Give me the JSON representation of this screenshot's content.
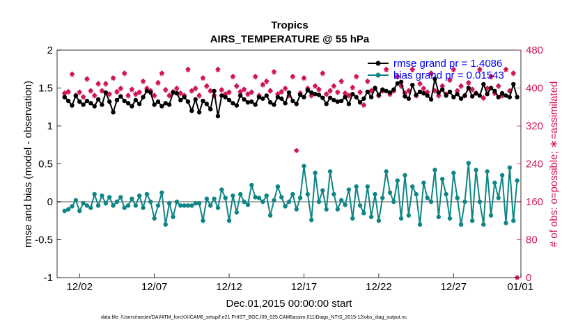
{
  "chart_data": {
    "type": "line",
    "title": "Tropics",
    "subtitle": "AIRS_TEMPERATURE @ 55 hPa",
    "xlabel": "Dec.01,2015 00:00:00 start",
    "ylabel": "rmse and bias (model - observation)",
    "ylabel_right": "# of obs: o=possible; ∗=assimilated",
    "x_range": [
      0.5,
      31.5
    ],
    "ylim": [
      -1,
      2
    ],
    "ylim_right": [
      0,
      480
    ],
    "x_ticks": [
      {
        "x": 2,
        "label": "12/02"
      },
      {
        "x": 7,
        "label": "12/07"
      },
      {
        "x": 12,
        "label": "12/12"
      },
      {
        "x": 17,
        "label": "12/17"
      },
      {
        "x": 22,
        "label": "12/22"
      },
      {
        "x": 27,
        "label": "12/27"
      },
      {
        "x": 32,
        "label": "01/01"
      }
    ],
    "y_ticks": [
      "-1",
      "-0.5",
      "0",
      "0.5",
      "1",
      "1.5",
      "2"
    ],
    "y_ticks_right": [
      "0",
      "80",
      "160",
      "240",
      "320",
      "400",
      "480"
    ],
    "legend": [
      {
        "label": "rmse grand pr = 1.4086",
        "color": "#000000"
      },
      {
        "label": "bias grand pr = 0.01543",
        "color": "#0f8585"
      }
    ],
    "footnote": "data file: /Users/raeder/DAI/ATM_forcXX/CAM6_setup/f.e21.FHIST_BGC.f09_025.CAM6assim.011/Diags_NTrS_2015-12/obs_diag_output.nc",
    "colors": {
      "rmse": "#000000",
      "bias": "#0f8585",
      "obs": "#d1145a",
      "zero": "#aaaaaa"
    },
    "series": [
      {
        "name": "rmse",
        "x": [
          1.0,
          1.25,
          1.5,
          1.75,
          2.0,
          2.25,
          2.5,
          2.75,
          3.0,
          3.25,
          3.5,
          3.75,
          4.0,
          4.25,
          4.5,
          4.75,
          5.0,
          5.25,
          5.5,
          5.75,
          6.0,
          6.25,
          6.5,
          6.75,
          7.0,
          7.25,
          7.5,
          7.75,
          8.0,
          8.25,
          8.5,
          8.75,
          9.0,
          9.25,
          9.5,
          9.75,
          10.0,
          10.25,
          10.5,
          10.75,
          11.0,
          11.25,
          11.5,
          11.75,
          12.0,
          12.25,
          12.5,
          12.75,
          13.0,
          13.25,
          13.5,
          13.75,
          14.0,
          14.25,
          14.5,
          14.75,
          15.0,
          15.25,
          15.5,
          15.75,
          16.0,
          16.25,
          16.5,
          16.75,
          17.0,
          17.25,
          17.5,
          17.75,
          18.0,
          18.25,
          18.5,
          18.75,
          19.0,
          19.25,
          19.5,
          19.75,
          20.0,
          20.25,
          20.5,
          20.75,
          21.0,
          21.25,
          21.5,
          21.75,
          22.0,
          22.25,
          22.5,
          22.75,
          23.0,
          23.25,
          23.5,
          23.75,
          24.0,
          24.25,
          24.5,
          24.75,
          25.0,
          25.25,
          25.5,
          25.75,
          26.0,
          26.25,
          26.5,
          26.75,
          27.0,
          27.25,
          27.5,
          27.75,
          28.0,
          28.25,
          28.5,
          28.75,
          29.0,
          29.25,
          29.5,
          29.75,
          30.0,
          30.25,
          30.5,
          30.75,
          31.0,
          31.25
        ],
        "values": [
          1.38,
          1.33,
          1.27,
          1.4,
          1.32,
          1.28,
          1.33,
          1.3,
          1.26,
          1.35,
          1.28,
          1.44,
          1.32,
          1.18,
          1.34,
          1.39,
          1.33,
          1.3,
          1.26,
          1.34,
          1.29,
          1.38,
          1.46,
          1.44,
          1.28,
          1.32,
          1.26,
          1.3,
          1.28,
          1.44,
          1.43,
          1.34,
          1.38,
          1.32,
          1.2,
          1.35,
          1.18,
          1.33,
          1.29,
          1.22,
          1.46,
          1.13,
          1.4,
          1.38,
          1.34,
          1.3,
          1.27,
          1.4,
          1.35,
          1.31,
          1.32,
          1.28,
          1.38,
          1.36,
          1.4,
          1.31,
          1.28,
          1.38,
          1.36,
          1.3,
          1.44,
          1.33,
          1.29,
          1.41,
          1.38,
          1.47,
          1.44,
          1.42,
          1.41,
          1.37,
          1.29,
          1.37,
          1.34,
          1.32,
          1.33,
          1.38,
          1.29,
          1.42,
          1.38,
          1.31,
          1.36,
          1.45,
          1.38,
          1.5,
          1.41,
          1.48,
          1.46,
          1.44,
          1.48,
          1.56,
          1.58,
          1.39,
          1.36,
          1.54,
          1.41,
          1.45,
          1.43,
          1.4,
          1.35,
          1.62,
          1.44,
          1.48,
          1.4,
          1.45,
          1.38,
          1.42,
          1.36,
          1.4,
          1.5,
          1.39,
          1.43,
          1.4,
          1.55,
          1.42,
          1.5,
          1.46,
          1.38,
          1.43,
          1.4,
          1.38,
          1.55,
          1.38
        ]
      },
      {
        "name": "bias",
        "x": [
          1.0,
          1.25,
          1.5,
          1.75,
          2.0,
          2.25,
          2.5,
          2.75,
          3.0,
          3.25,
          3.5,
          3.75,
          4.0,
          4.25,
          4.5,
          4.75,
          5.0,
          5.25,
          5.5,
          5.75,
          6.0,
          6.25,
          6.5,
          6.75,
          7.0,
          7.25,
          7.5,
          7.75,
          8.0,
          8.25,
          8.5,
          8.75,
          9.0,
          9.25,
          9.5,
          9.75,
          10.0,
          10.25,
          10.5,
          10.75,
          11.0,
          11.25,
          11.5,
          11.75,
          12.0,
          12.25,
          12.5,
          12.75,
          13.0,
          13.25,
          13.5,
          13.75,
          14.0,
          14.25,
          14.5,
          14.75,
          15.0,
          15.25,
          15.5,
          15.75,
          16.0,
          16.25,
          16.5,
          16.75,
          17.0,
          17.25,
          17.5,
          17.75,
          18.0,
          18.25,
          18.5,
          18.75,
          19.0,
          19.25,
          19.5,
          19.75,
          20.0,
          20.25,
          20.5,
          20.75,
          21.0,
          21.25,
          21.5,
          21.75,
          22.0,
          22.25,
          22.5,
          22.75,
          23.0,
          23.25,
          23.5,
          23.75,
          24.0,
          24.25,
          24.5,
          24.75,
          25.0,
          25.25,
          25.5,
          25.75,
          26.0,
          26.25,
          26.5,
          26.75,
          27.0,
          27.25,
          27.5,
          27.75,
          28.0,
          28.25,
          28.5,
          28.75,
          29.0,
          29.25,
          29.5,
          29.75,
          30.0,
          30.25,
          30.5,
          30.75,
          31.0,
          31.25
        ],
        "values": [
          -0.12,
          -0.1,
          -0.06,
          0.02,
          -0.12,
          -0.02,
          -0.05,
          -0.08,
          0.1,
          -0.05,
          0.08,
          -0.02,
          0.06,
          -0.05,
          0.0,
          0.06,
          -0.08,
          -0.05,
          0.04,
          -0.05,
          0.08,
          -0.08,
          0.1,
          0.0,
          -0.22,
          -0.05,
          0.12,
          -0.3,
          -0.02,
          -0.2,
          0.0,
          -0.05,
          -0.05,
          -0.05,
          -0.05,
          -0.02,
          -0.02,
          -0.25,
          0.04,
          -0.05,
          0.04,
          -0.08,
          0.16,
          0.05,
          -0.25,
          0.08,
          -0.14,
          0.1,
          0.0,
          -0.04,
          0.22,
          0.06,
          0.05,
          0.0,
          0.08,
          -0.18,
          0.02,
          0.2,
          0.06,
          -0.06,
          0.0,
          0.1,
          -0.1,
          0.05,
          0.47,
          0.1,
          -0.24,
          0.38,
          0.0,
          0.15,
          -0.1,
          0.4,
          0.1,
          -0.1,
          0.02,
          -0.04,
          0.16,
          -0.22,
          0.2,
          -0.05,
          -0.15,
          0.2,
          -0.2,
          0.1,
          -0.25,
          0.05,
          0.4,
          0.12,
          0.0,
          0.28,
          -0.22,
          0.35,
          -0.18,
          0.2,
          0.1,
          -0.3,
          0.25,
          0.05,
          0.0,
          0.42,
          -0.2,
          0.3,
          0.1,
          -0.22,
          0.38,
          0.05,
          -0.3,
          0.0,
          0.51,
          -0.25,
          0.42,
          0.0,
          -0.3,
          0.4,
          -0.18,
          0.25,
          0.05,
          0.35,
          -0.28,
          0.45,
          -0.25,
          0.28
        ]
      },
      {
        "name": "obs_possible",
        "x": [
          1.0,
          1.25,
          1.5,
          1.75,
          2.0,
          2.25,
          2.5,
          2.75,
          3.0,
          3.25,
          3.5,
          3.75,
          4.0,
          4.25,
          4.5,
          4.75,
          5.0,
          5.25,
          5.5,
          5.75,
          6.0,
          6.25,
          6.5,
          6.75,
          7.0,
          7.25,
          7.5,
          7.75,
          8.0,
          8.25,
          8.5,
          8.75,
          9.0,
          9.25,
          9.5,
          9.75,
          10.0,
          10.25,
          10.5,
          10.75,
          11.0,
          11.25,
          11.5,
          11.75,
          12.0,
          12.25,
          12.5,
          12.75,
          13.0,
          13.25,
          13.5,
          13.75,
          14.0,
          14.25,
          14.5,
          14.75,
          15.0,
          15.25,
          15.5,
          15.75,
          16.0,
          16.25,
          16.5,
          16.75,
          17.0,
          17.25,
          17.5,
          17.75,
          18.0,
          18.25,
          18.5,
          18.75,
          19.0,
          19.25,
          19.5,
          19.75,
          20.0,
          20.25,
          20.5,
          20.75,
          21.0,
          21.25,
          21.5,
          21.75,
          22.0,
          22.25,
          22.5,
          22.75,
          23.0,
          23.25,
          23.5,
          23.75,
          24.0,
          24.25,
          24.5,
          24.75,
          25.0,
          25.25,
          25.5,
          25.75,
          26.0,
          26.25,
          26.5,
          26.75,
          27.0,
          27.25,
          27.5,
          27.75,
          28.0,
          28.25,
          28.5,
          28.75,
          29.0,
          29.25,
          29.5,
          29.75,
          30.0,
          30.25,
          30.5,
          30.75,
          31.0,
          31.25
        ],
        "values": [
          390,
          393,
          430,
          385,
          392,
          382,
          420,
          395,
          385,
          410,
          395,
          410,
          388,
          422,
          393,
          400,
          432,
          385,
          398,
          388,
          392,
          415,
          400,
          395,
          385,
          412,
          432,
          397,
          385,
          393,
          400,
          390,
          385,
          440,
          395,
          400,
          385,
          422,
          405,
          395,
          385,
          440,
          397,
          388,
          392,
          425,
          405,
          393,
          398,
          388,
          392,
          425,
          385,
          408,
          415,
          395,
          435,
          388,
          393,
          400,
          385,
          425,
          268,
          390,
          422,
          400,
          385,
          405,
          398,
          432,
          388,
          395,
          405,
          392,
          415,
          390,
          385,
          402,
          425,
          392,
          365,
          415,
          395,
          400,
          385,
          395,
          440,
          388,
          395,
          425,
          405,
          390,
          395,
          440,
          385,
          410,
          400,
          392,
          432,
          395,
          385,
          405,
          388,
          418,
          440,
          395,
          405,
          385,
          412,
          398,
          390,
          440,
          380,
          400,
          425,
          390,
          405,
          385,
          440,
          395,
          432,
          0
        ]
      },
      {
        "name": "obs_assimilated",
        "x": [
          1.0,
          1.25,
          1.5,
          1.75,
          2.0,
          2.25,
          2.5,
          2.75,
          3.0,
          3.25,
          3.5,
          3.75,
          4.0,
          4.25,
          4.5,
          4.75,
          5.0,
          5.25,
          5.5,
          5.75,
          6.0,
          6.25,
          6.5,
          6.75,
          7.0,
          7.25,
          7.5,
          7.75,
          8.0,
          8.25,
          8.5,
          8.75,
          9.0,
          9.25,
          9.5,
          9.75,
          10.0,
          10.25,
          10.5,
          10.75,
          11.0,
          11.25,
          11.5,
          11.75,
          12.0,
          12.25,
          12.5,
          12.75,
          13.0,
          13.25,
          13.5,
          13.75,
          14.0,
          14.25,
          14.5,
          14.75,
          15.0,
          15.25,
          15.5,
          15.75,
          16.0,
          16.25,
          16.5,
          16.75,
          17.0,
          17.25,
          17.5,
          17.75,
          18.0,
          18.25,
          18.5,
          18.75,
          19.0,
          19.25,
          19.5,
          19.75,
          20.0,
          20.25,
          20.5,
          20.75,
          21.0,
          21.25,
          21.5,
          21.75,
          22.0,
          22.25,
          22.5,
          22.75,
          23.0,
          23.25,
          23.5,
          23.75,
          24.0,
          24.25,
          24.5,
          24.75,
          25.0,
          25.25,
          25.5,
          25.75,
          26.0,
          26.25,
          26.5,
          26.75,
          27.0,
          27.25,
          27.5,
          27.75,
          28.0,
          28.25,
          28.5,
          28.75,
          29.0,
          29.25,
          29.5,
          29.75,
          30.0,
          30.25,
          30.5,
          30.75,
          31.0,
          31.25
        ],
        "values": [
          388,
          391,
          428,
          383,
          390,
          380,
          418,
          393,
          383,
          408,
          393,
          408,
          386,
          420,
          391,
          398,
          430,
          383,
          396,
          386,
          390,
          413,
          398,
          393,
          383,
          410,
          430,
          395,
          383,
          391,
          398,
          388,
          383,
          438,
          393,
          398,
          383,
          420,
          403,
          393,
          383,
          438,
          395,
          386,
          390,
          423,
          403,
          391,
          396,
          386,
          390,
          423,
          383,
          406,
          413,
          393,
          433,
          386,
          391,
          398,
          383,
          423,
          268,
          388,
          420,
          398,
          383,
          403,
          396,
          430,
          386,
          393,
          403,
          390,
          413,
          388,
          383,
          400,
          423,
          390,
          363,
          413,
          393,
          398,
          383,
          393,
          438,
          386,
          393,
          423,
          403,
          388,
          393,
          438,
          383,
          408,
          398,
          390,
          430,
          393,
          383,
          403,
          386,
          416,
          438,
          393,
          403,
          383,
          410,
          396,
          388,
          438,
          378,
          398,
          423,
          388,
          403,
          383,
          438,
          393,
          430,
          0
        ]
      }
    ]
  }
}
